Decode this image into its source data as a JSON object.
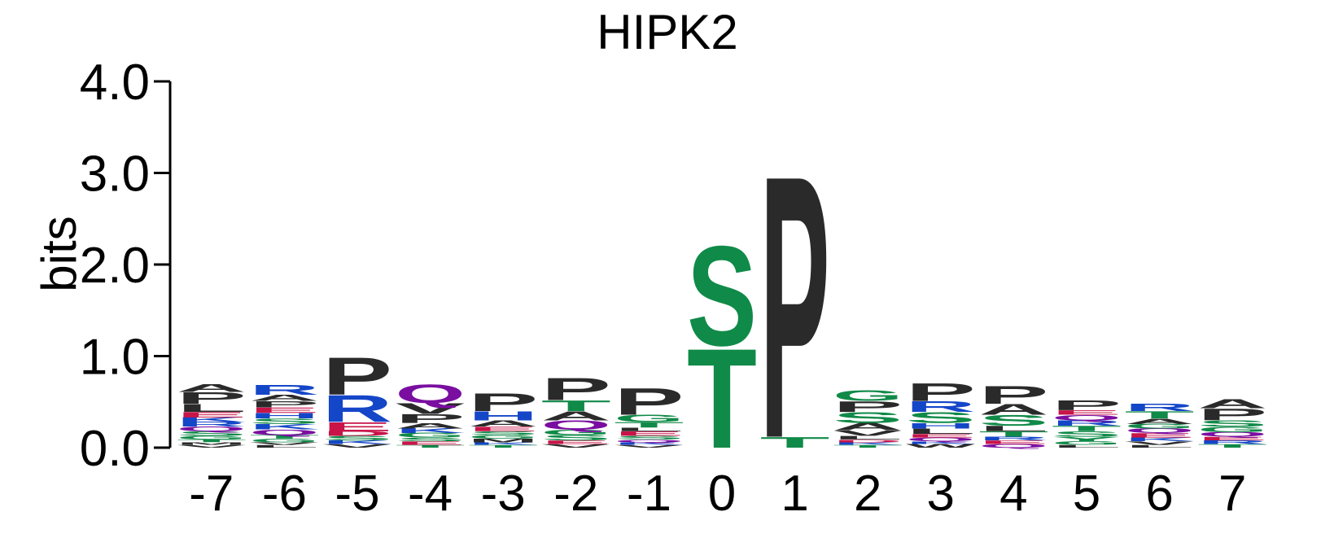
{
  "chart_data": {
    "type": "sequence-logo",
    "title": "HIPK2",
    "ylabel": "bits",
    "ylim": [
      0,
      4.0
    ],
    "yticks": [
      "0.0",
      "1.0",
      "2.0",
      "3.0",
      "4.0"
    ],
    "positions": [
      "-7",
      "-6",
      "-5",
      "-4",
      "-3",
      "-2",
      "-1",
      "0",
      "1",
      "2",
      "3",
      "4",
      "5",
      "6",
      "7"
    ],
    "colors": {
      "P": "#2a2a2a",
      "A": "#2a2a2a",
      "V": "#2a2a2a",
      "L": "#2a2a2a",
      "I": "#2a2a2a",
      "M": "#2a2a2a",
      "F": "#2a2a2a",
      "W": "#2a2a2a",
      "G": "#108a48",
      "S": "#108a48",
      "T": "#108a48",
      "Y": "#108a48",
      "C": "#108a48",
      "R": "#1446c8",
      "K": "#1446c8",
      "H": "#1446c8",
      "E": "#c81448",
      "D": "#c81448",
      "Q": "#7a0ea0",
      "N": "#7a0ea0"
    },
    "columns": [
      {
        "pos": "-7",
        "letters": [
          [
            "V",
            0.03
          ],
          [
            "M",
            0.03
          ],
          [
            "T",
            0.03
          ],
          [
            "G",
            0.04
          ],
          [
            "S",
            0.05
          ],
          [
            "Q",
            0.05
          ],
          [
            "R",
            0.05
          ],
          [
            "K",
            0.05
          ],
          [
            "E",
            0.06
          ],
          [
            "L",
            0.09
          ],
          [
            "P",
            0.13
          ],
          [
            "A",
            0.09
          ]
        ]
      },
      {
        "pos": "-6",
        "letters": [
          [
            "L",
            0.03
          ],
          [
            "V",
            0.03
          ],
          [
            "G",
            0.04
          ],
          [
            "T",
            0.04
          ],
          [
            "Q",
            0.06
          ],
          [
            "K",
            0.06
          ],
          [
            "S",
            0.06
          ],
          [
            "H",
            0.06
          ],
          [
            "E",
            0.06
          ],
          [
            "P",
            0.07
          ],
          [
            "A",
            0.07
          ],
          [
            "R",
            0.11
          ]
        ]
      },
      {
        "pos": "-5",
        "letters": [
          [
            "V",
            0.04
          ],
          [
            "K",
            0.04
          ],
          [
            "S",
            0.05
          ],
          [
            "D",
            0.05
          ],
          [
            "E",
            0.1
          ],
          [
            "R",
            0.3
          ],
          [
            "P",
            0.42
          ]
        ]
      },
      {
        "pos": "-4",
        "letters": [
          [
            "T",
            0.03
          ],
          [
            "E",
            0.04
          ],
          [
            "S",
            0.04
          ],
          [
            "G",
            0.05
          ],
          [
            "K",
            0.05
          ],
          [
            "A",
            0.06
          ],
          [
            "P",
            0.1
          ],
          [
            "V",
            0.12
          ],
          [
            "Q",
            0.21
          ]
        ]
      },
      {
        "pos": "-3",
        "letters": [
          [
            "T",
            0.03
          ],
          [
            "K",
            0.03
          ],
          [
            "M",
            0.04
          ],
          [
            "G",
            0.04
          ],
          [
            "S",
            0.04
          ],
          [
            "E",
            0.05
          ],
          [
            "A",
            0.07
          ],
          [
            "H",
            0.1
          ],
          [
            "P",
            0.2
          ]
        ]
      },
      {
        "pos": "-2",
        "letters": [
          [
            "V",
            0.04
          ],
          [
            "E",
            0.04
          ],
          [
            "S",
            0.06
          ],
          [
            "G",
            0.06
          ],
          [
            "Q",
            0.1
          ],
          [
            "A",
            0.1
          ],
          [
            "T",
            0.12
          ],
          [
            "P",
            0.25
          ]
        ]
      },
      {
        "pos": "-1",
        "letters": [
          [
            "V",
            0.03
          ],
          [
            "K",
            0.03
          ],
          [
            "Q",
            0.03
          ],
          [
            "S",
            0.04
          ],
          [
            "E",
            0.05
          ],
          [
            "L",
            0.04
          ],
          [
            "T",
            0.06
          ],
          [
            "G",
            0.08
          ],
          [
            "P",
            0.3
          ]
        ]
      },
      {
        "pos": "0",
        "letters": [
          [
            "T",
            1.12
          ],
          [
            "S",
            1.12
          ]
        ]
      },
      {
        "pos": "1",
        "letters": [
          [
            "T",
            0.12
          ],
          [
            "P",
            2.95
          ]
        ]
      },
      {
        "pos": "2",
        "letters": [
          [
            "T",
            0.03
          ],
          [
            "K",
            0.03
          ],
          [
            "D",
            0.03
          ],
          [
            "L",
            0.04
          ],
          [
            "V",
            0.06
          ],
          [
            "A",
            0.08
          ],
          [
            "S",
            0.12
          ],
          [
            "P",
            0.12
          ],
          [
            "G",
            0.12
          ]
        ]
      },
      {
        "pos": "3",
        "letters": [
          [
            "W",
            0.04
          ],
          [
            "K",
            0.03
          ],
          [
            "Q",
            0.04
          ],
          [
            "E",
            0.04
          ],
          [
            "L",
            0.06
          ],
          [
            "H",
            0.06
          ],
          [
            "S",
            0.12
          ],
          [
            "R",
            0.12
          ],
          [
            "P",
            0.2
          ]
        ]
      },
      {
        "pos": "4",
        "letters": [
          [
            "Q",
            0.04
          ],
          [
            "E",
            0.04
          ],
          [
            "R",
            0.04
          ],
          [
            "T",
            0.06
          ],
          [
            "L",
            0.06
          ],
          [
            "S",
            0.12
          ],
          [
            "A",
            0.12
          ],
          [
            "P",
            0.2
          ]
        ]
      },
      {
        "pos": "5",
        "letters": [
          [
            "L",
            0.03
          ],
          [
            "G",
            0.04
          ],
          [
            "Y",
            0.05
          ],
          [
            "S",
            0.06
          ],
          [
            "T",
            0.06
          ],
          [
            "R",
            0.06
          ],
          [
            "Q",
            0.06
          ],
          [
            "E",
            0.05
          ],
          [
            "P",
            0.11
          ]
        ]
      },
      {
        "pos": "6",
        "letters": [
          [
            "L",
            0.03
          ],
          [
            "V",
            0.04
          ],
          [
            "K",
            0.04
          ],
          [
            "E",
            0.05
          ],
          [
            "Q",
            0.05
          ],
          [
            "G",
            0.05
          ],
          [
            "A",
            0.06
          ],
          [
            "T",
            0.08
          ],
          [
            "R",
            0.08
          ]
        ]
      },
      {
        "pos": "7",
        "letters": [
          [
            "T",
            0.04
          ],
          [
            "R",
            0.04
          ],
          [
            "E",
            0.04
          ],
          [
            "Q",
            0.05
          ],
          [
            "G",
            0.06
          ],
          [
            "S",
            0.07
          ],
          [
            "P",
            0.13
          ],
          [
            "A",
            0.1
          ]
        ]
      }
    ]
  }
}
